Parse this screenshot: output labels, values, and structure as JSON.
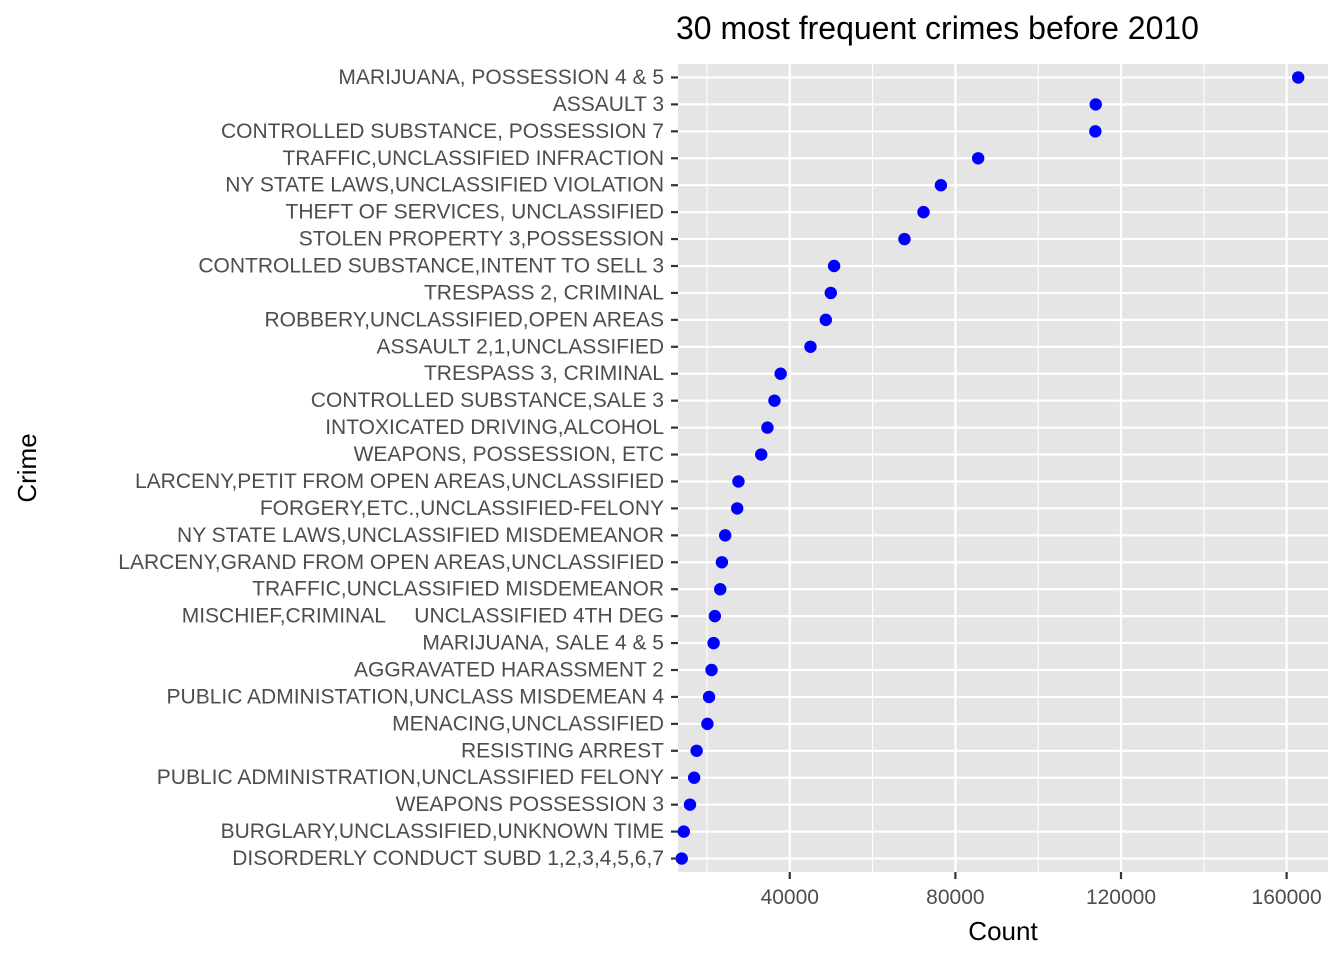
{
  "chart_data": {
    "type": "scatter",
    "title": "30 most frequent crimes before 2010",
    "xlabel": "Count",
    "ylabel": "Crime",
    "x_ticks": [
      40000,
      80000,
      120000,
      160000
    ],
    "x_tick_labels": [
      "40000",
      "80000",
      "120000",
      "160000"
    ],
    "xlim": [
      13000,
      170000
    ],
    "point_color": "#0000ff",
    "panel_color": "#e5e5e5",
    "grid": true,
    "legend": "none",
    "categories": [
      "MARIJUANA, POSSESSION 4 & 5",
      "ASSAULT 3",
      "CONTROLLED SUBSTANCE, POSSESSION 7",
      "TRAFFIC,UNCLASSIFIED INFRACTION",
      "NY STATE LAWS,UNCLASSIFIED VIOLATION",
      "THEFT OF SERVICES, UNCLASSIFIED",
      "STOLEN PROPERTY 3,POSSESSION",
      "CONTROLLED SUBSTANCE,INTENT TO SELL 3",
      "TRESPASS 2, CRIMINAL",
      "ROBBERY,UNCLASSIFIED,OPEN AREAS",
      "ASSAULT 2,1,UNCLASSIFIED",
      "TRESPASS 3, CRIMINAL",
      "CONTROLLED SUBSTANCE,SALE 3",
      "INTOXICATED DRIVING,ALCOHOL",
      "WEAPONS, POSSESSION, ETC",
      "LARCENY,PETIT FROM OPEN AREAS,UNCLASSIFIED",
      "FORGERY,ETC.,UNCLASSIFIED-FELONY",
      "NY STATE LAWS,UNCLASSIFIED MISDEMEANOR",
      "LARCENY,GRAND FROM OPEN AREAS,UNCLASSIFIED",
      "TRAFFIC,UNCLASSIFIED MISDEMEANOR",
      "MISCHIEF,CRIMINAL     UNCLASSIFIED 4TH DEG",
      "MARIJUANA, SALE 4 & 5",
      "AGGRAVATED HARASSMENT 2",
      "PUBLIC ADMINISTATION,UNCLASS MISDEMEAN 4",
      "MENACING,UNCLASSIFIED",
      "RESISTING ARREST",
      "PUBLIC ADMINISTRATION,UNCLASSIFIED FELONY",
      "WEAPONS POSSESSION 3",
      "BURGLARY,UNCLASSIFIED,UNKNOWN TIME",
      "DISORDERLY CONDUCT SUBD 1,2,3,4,5,6,7"
    ],
    "values": [
      162800,
      113900,
      113800,
      85500,
      76500,
      72300,
      67700,
      50700,
      49900,
      48700,
      45000,
      37800,
      36300,
      34600,
      33100,
      27600,
      27300,
      24400,
      23600,
      23200,
      21900,
      21600,
      21100,
      20500,
      20100,
      17500,
      16900,
      15900,
      14400,
      13900
    ]
  }
}
